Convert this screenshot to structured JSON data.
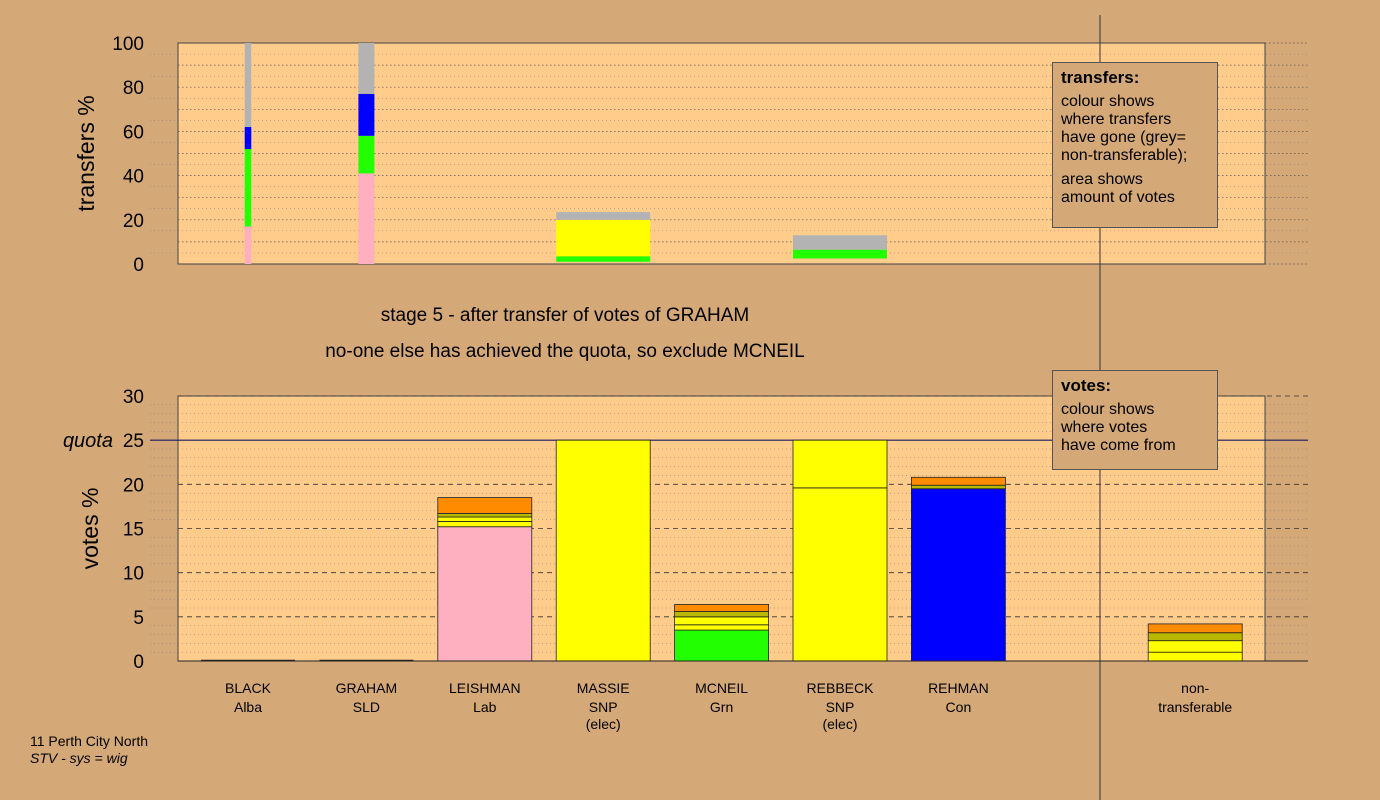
{
  "captions": {
    "stage": "stage 5 - after transfer of votes of GRAHAM",
    "action": "no-one else has achieved the quota, so exclude MCNEIL"
  },
  "footer": {
    "ward": "11 Perth City North",
    "system": "STV - sys = wig"
  },
  "legend_transfers": {
    "title": "transfers:",
    "lines1": [
      "colour shows",
      "where transfers",
      "have gone (grey=",
      "non-transferable);"
    ],
    "lines2": [
      "area shows",
      "amount of votes"
    ]
  },
  "legend_votes": {
    "title": "votes:",
    "lines": [
      "colour shows",
      "where votes",
      "have come from"
    ]
  },
  "colors": {
    "background": "#d4a977",
    "plot_bg": "#ffcc8c",
    "Alba": "#7b68ee",
    "SLD": "#ff8c00",
    "Lab": "#ffb0c0",
    "SNP": "#ffff00",
    "Grn": "#22ff00",
    "Con": "#0000ff",
    "Other": "#b8b800",
    "nontransferable": "#b3b3b3"
  },
  "candidates": [
    {
      "name": "BLACK",
      "party": "Alba",
      "status": ""
    },
    {
      "name": "GRAHAM",
      "party": "SLD",
      "status": ""
    },
    {
      "name": "LEISHMAN",
      "party": "Lab",
      "status": ""
    },
    {
      "name": "MASSIE",
      "party": "SNP",
      "status": "(elec)"
    },
    {
      "name": "MCNEIL",
      "party": "Grn",
      "status": ""
    },
    {
      "name": "REBBECK",
      "party": "SNP",
      "status": "(elec)"
    },
    {
      "name": "REHMAN",
      "party": "Con",
      "status": ""
    },
    {
      "name": "",
      "party": "",
      "status": ""
    },
    {
      "name": "non-",
      "party": "transferable",
      "status": ""
    }
  ],
  "chart_data": [
    {
      "type": "bar",
      "ylabel": "transfers %",
      "ylim": [
        0,
        100
      ],
      "yticks": [
        0,
        20,
        40,
        60,
        80,
        100
      ],
      "grid": "dotted",
      "note": "stacked transfer distribution per source; bar width shows amount of votes",
      "bars": [
        {
          "category": "BLACK",
          "relative_width": 0.07,
          "segments": [
            {
              "party": "Lab",
              "from": 0,
              "to": 17
            },
            {
              "party": "Grn",
              "from": 17,
              "to": 52
            },
            {
              "party": "Con",
              "from": 52,
              "to": 62
            },
            {
              "party": "nontransferable",
              "from": 62,
              "to": 100
            }
          ]
        },
        {
          "category": "GRAHAM",
          "relative_width": 0.17,
          "segments": [
            {
              "party": "Lab",
              "from": 0,
              "to": 41
            },
            {
              "party": "Grn",
              "from": 41,
              "to": 58
            },
            {
              "party": "Con",
              "from": 58,
              "to": 77
            },
            {
              "party": "nontransferable",
              "from": 77,
              "to": 100
            }
          ]
        },
        {
          "category": "MASSIE",
          "relative_width": 1.0,
          "segments": [
            {
              "party": "Grn",
              "from": 1,
              "to": 3.5
            },
            {
              "party": "SNP",
              "from": 3.5,
              "to": 20
            },
            {
              "party": "nontransferable",
              "from": 20,
              "to": 23.5
            }
          ]
        },
        {
          "category": "REBBECK",
          "relative_width": 1.0,
          "segments": [
            {
              "party": "Grn",
              "from": 2.5,
              "to": 6.5
            },
            {
              "party": "nontransferable",
              "from": 6.5,
              "to": 13
            }
          ]
        }
      ]
    },
    {
      "type": "bar",
      "ylabel": "votes %",
      "ylim": [
        0,
        30
      ],
      "yticks": [
        0,
        5,
        10,
        15,
        20,
        25,
        30
      ],
      "quota": 25,
      "quota_label": "quota",
      "grid": "dashed",
      "stacked": true,
      "bars": [
        {
          "category": "BLACK",
          "segments": []
        },
        {
          "category": "GRAHAM",
          "segments": []
        },
        {
          "category": "LEISHMAN",
          "segments": [
            {
              "party": "Lab",
              "value": 15.2
            },
            {
              "party": "SNP",
              "value": 0.6
            },
            {
              "party": "SNP",
              "value": 0.5
            },
            {
              "party": "Other",
              "value": 0.4
            },
            {
              "party": "SLD",
              "value": 1.8
            }
          ]
        },
        {
          "category": "MASSIE",
          "segments": [
            {
              "party": "SNP",
              "value": 25
            }
          ]
        },
        {
          "category": "MCNEIL",
          "segments": [
            {
              "party": "Grn",
              "value": 3.5
            },
            {
              "party": "SNP",
              "value": 0.6
            },
            {
              "party": "SNP",
              "value": 0.9
            },
            {
              "party": "Other",
              "value": 0.6
            },
            {
              "party": "SLD",
              "value": 0.8
            }
          ]
        },
        {
          "category": "REBBECK",
          "segments": [
            {
              "party": "SNP",
              "value": 19.6
            },
            {
              "party": "SNP",
              "value": 5.4
            }
          ]
        },
        {
          "category": "REHMAN",
          "segments": [
            {
              "party": "Con",
              "value": 19.5
            },
            {
              "party": "Other",
              "value": 0.4
            },
            {
              "party": "SLD",
              "value": 0.9
            }
          ]
        },
        {
          "category": "",
          "segments": []
        },
        {
          "category": "non-transferable",
          "segments": [
            {
              "party": "SNP",
              "value": 1.0
            },
            {
              "party": "SNP",
              "value": 1.3
            },
            {
              "party": "Other",
              "value": 0.9
            },
            {
              "party": "SLD",
              "value": 1.0
            }
          ]
        }
      ]
    }
  ]
}
